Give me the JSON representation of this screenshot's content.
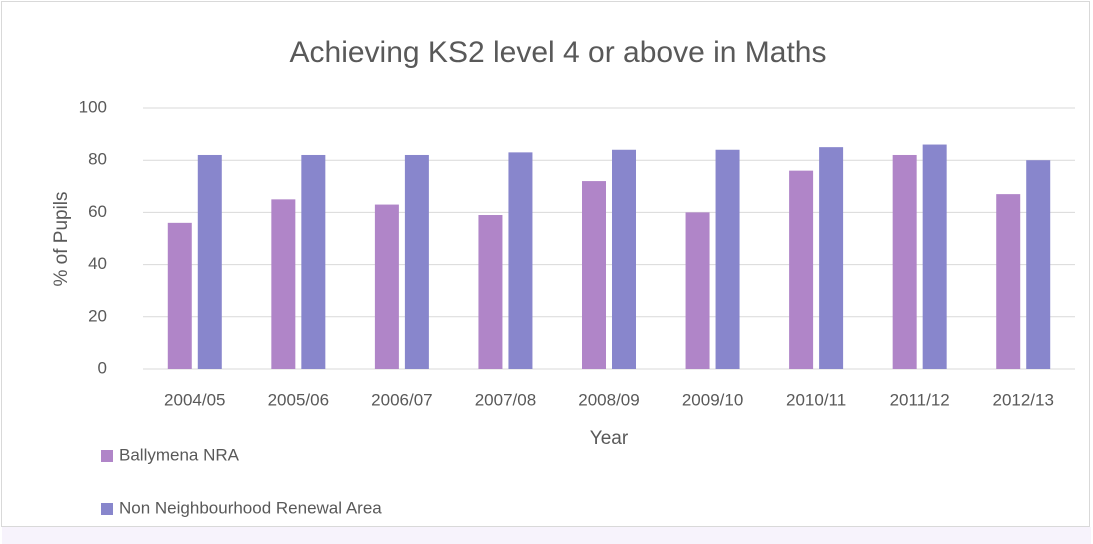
{
  "chart_data": {
    "type": "bar",
    "title": "Achieving KS2 level 4 or above in Maths",
    "x_label": "Year",
    "y_label": "% of Pupils",
    "categories": [
      "2004/05",
      "2005/06",
      "2006/07",
      "2007/08",
      "2008/09",
      "2009/10",
      "2010/11",
      "2011/12",
      "2012/13"
    ],
    "series": [
      {
        "name": "Ballymena NRA",
        "color": "#b085c8",
        "values": [
          56,
          65,
          63,
          59,
          72,
          60,
          76,
          82,
          67
        ]
      },
      {
        "name": "Non Neighbourhood Renewal Area",
        "color": "#8886cc",
        "values": [
          82,
          82,
          82,
          83,
          84,
          84,
          85,
          86,
          80
        ]
      }
    ],
    "ylim": [
      0,
      100
    ],
    "yticks": [
      0,
      20,
      40,
      60,
      80,
      100
    ],
    "grid": true,
    "legend": "bottom-left"
  }
}
